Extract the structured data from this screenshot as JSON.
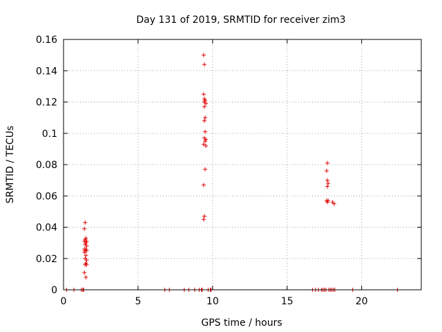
{
  "chart_data": {
    "type": "scatter",
    "title": "Day 131 of 2019, SRMTID for receiver zim3",
    "xlabel": "GPS time / hours",
    "ylabel": "SRMTID / TECUs",
    "xlim": [
      0,
      24
    ],
    "ylim": [
      0,
      0.16
    ],
    "x_ticks": [
      0,
      5,
      10,
      15,
      20
    ],
    "x_tick_labels": [
      "0",
      "5",
      "10",
      "15",
      "20"
    ],
    "y_ticks": [
      0,
      0.02,
      0.04,
      0.06,
      0.08,
      0.1,
      0.12,
      0.14,
      0.16
    ],
    "y_tick_labels": [
      "0",
      "0.02",
      "0.04",
      "0.06",
      "0.08",
      "0.1",
      "0.12",
      "0.14",
      "0.16"
    ],
    "grid": true,
    "marker": "+",
    "color": "#e00000",
    "series": [
      {
        "name": "SRMTID",
        "points": [
          [
            0.2,
            0
          ],
          [
            0.7,
            0
          ],
          [
            1.2,
            0
          ],
          [
            1.3,
            0
          ],
          [
            1.35,
            0
          ],
          [
            1.45,
            0.043
          ],
          [
            1.4,
            0.039
          ],
          [
            1.5,
            0.033
          ],
          [
            1.45,
            0.032
          ],
          [
            1.55,
            0.031
          ],
          [
            1.4,
            0.031
          ],
          [
            1.5,
            0.03
          ],
          [
            1.45,
            0.029
          ],
          [
            1.55,
            0.028
          ],
          [
            1.4,
            0.026
          ],
          [
            1.5,
            0.026
          ],
          [
            1.45,
            0.025
          ],
          [
            1.55,
            0.025
          ],
          [
            1.4,
            0.024
          ],
          [
            1.5,
            0.022
          ],
          [
            1.45,
            0.02
          ],
          [
            1.55,
            0.019
          ],
          [
            1.5,
            0.017
          ],
          [
            1.45,
            0.016
          ],
          [
            1.55,
            0.016
          ],
          [
            1.4,
            0.011
          ],
          [
            1.5,
            0.008
          ],
          [
            6.8,
            0
          ],
          [
            7.1,
            0
          ],
          [
            8.1,
            0
          ],
          [
            8.4,
            0
          ],
          [
            8.8,
            0
          ],
          [
            9.1,
            0
          ],
          [
            9.25,
            0
          ],
          [
            9.3,
            0
          ],
          [
            9.4,
            0.15
          ],
          [
            9.45,
            0.144
          ],
          [
            9.4,
            0.125
          ],
          [
            9.45,
            0.122
          ],
          [
            9.5,
            0.121
          ],
          [
            9.45,
            0.12
          ],
          [
            9.55,
            0.119
          ],
          [
            9.45,
            0.117
          ],
          [
            9.5,
            0.11
          ],
          [
            9.45,
            0.108
          ],
          [
            9.5,
            0.101
          ],
          [
            9.45,
            0.097
          ],
          [
            9.55,
            0.096
          ],
          [
            9.5,
            0.095
          ],
          [
            9.4,
            0.093
          ],
          [
            9.55,
            0.092
          ],
          [
            9.5,
            0.077
          ],
          [
            9.4,
            0.067
          ],
          [
            9.45,
            0.047
          ],
          [
            9.4,
            0.045
          ],
          [
            9.7,
            0
          ],
          [
            9.85,
            0
          ],
          [
            9.9,
            0
          ],
          [
            16.7,
            0
          ],
          [
            16.9,
            0
          ],
          [
            17.1,
            0
          ],
          [
            17.3,
            0
          ],
          [
            17.4,
            0
          ],
          [
            17.5,
            0
          ],
          [
            17.6,
            0
          ],
          [
            17.7,
            0.081
          ],
          [
            17.65,
            0.076
          ],
          [
            17.7,
            0.07
          ],
          [
            17.75,
            0.068
          ],
          [
            17.7,
            0.066
          ],
          [
            17.65,
            0.057
          ],
          [
            17.75,
            0.057
          ],
          [
            17.7,
            0.056
          ],
          [
            18.05,
            0.056
          ],
          [
            18.15,
            0.055
          ],
          [
            17.8,
            0
          ],
          [
            17.9,
            0
          ],
          [
            18.0,
            0
          ],
          [
            18.1,
            0
          ],
          [
            18.2,
            0
          ],
          [
            19.4,
            0
          ],
          [
            22.4,
            0
          ]
        ]
      }
    ]
  }
}
